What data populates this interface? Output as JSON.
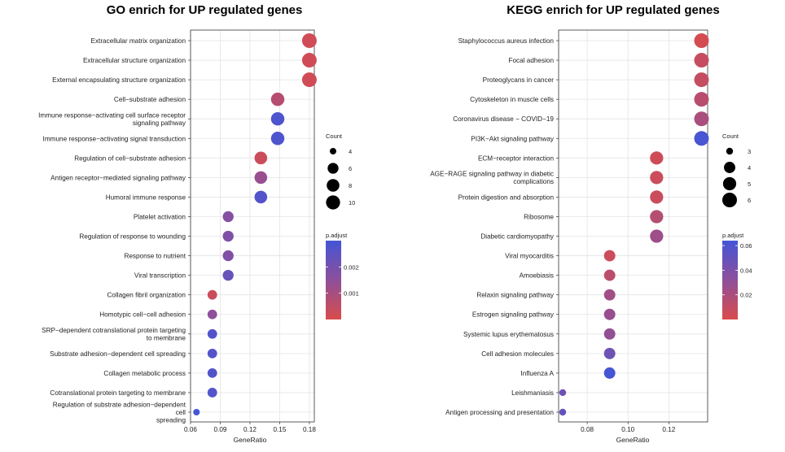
{
  "chart_data": [
    {
      "type": "scatter",
      "title": "GO enrich for UP regulated genes",
      "xlabel": "GeneRatio",
      "ylabel": "",
      "xlim": [
        0.06,
        0.185
      ],
      "xticks": [
        0.06,
        0.09,
        0.12,
        0.15,
        0.18
      ],
      "xtick_labels": [
        "0.06",
        "0.09",
        "0.12",
        "0.15",
        "0.18"
      ],
      "grid": true,
      "categories": [
        "Extracellular matrix organization",
        "Extracellular structure organization",
        "External encapsulating structure organization",
        "Cell−substrate adhesion",
        "Immune response−activating cell surface receptor\nsignaling pathway",
        "Immune response−activating signal transduction",
        "Regulation of cell−substrate adhesion",
        "Antigen receptor−mediated signaling pathway",
        "Humoral immune response",
        "Platelet activation",
        "Regulation of response to wounding",
        "Response to nutrient",
        "Viral transcription",
        "Collagen fibril organization",
        "Homotypic cell−cell adhesion",
        "SRP−dependent cotranslational protein targeting\nto membrane",
        "Substrate adhesion−dependent cell spreading",
        "Collagen metabolic process",
        "Cotranslational protein targeting to membrane",
        "Regulation of substrate adhesion−dependent\ncell\nspreading"
      ],
      "x": [
        0.18,
        0.18,
        0.18,
        0.148,
        0.148,
        0.148,
        0.131,
        0.131,
        0.131,
        0.098,
        0.098,
        0.098,
        0.098,
        0.082,
        0.082,
        0.082,
        0.082,
        0.082,
        0.082,
        0.066
      ],
      "count": [
        11,
        11,
        11,
        9,
        9,
        9,
        8,
        8,
        8,
        6,
        6,
        6,
        6,
        5,
        5,
        5,
        5,
        5,
        5,
        4
      ],
      "p_adjust": [
        0.0002,
        0.0002,
        0.0002,
        0.0007,
        0.0028,
        0.0028,
        0.0003,
        0.0013,
        0.0027,
        0.0017,
        0.0018,
        0.0018,
        0.0023,
        0.0003,
        0.0015,
        0.0027,
        0.0027,
        0.0027,
        0.0027,
        0.003
      ],
      "size_legend": {
        "title": "Count",
        "values": [
          4,
          6,
          8,
          10
        ],
        "labels": [
          "4",
          "6",
          "8",
          "10"
        ],
        "range": [
          4,
          11
        ]
      },
      "color_legend": {
        "title": "p.adjust",
        "min": 0.0,
        "max": 0.003,
        "ticks": [
          0.001,
          0.002
        ],
        "tick_labels": [
          "0.001",
          "0.002"
        ],
        "low_color": "#d94c4c",
        "high_color": "#4455d6"
      }
    },
    {
      "type": "scatter",
      "title": "KEGG enrich for UP regulated genes",
      "xlabel": "GeneRatio",
      "ylabel": "",
      "xlim": [
        0.066,
        0.139
      ],
      "xticks": [
        0.08,
        0.1,
        0.12
      ],
      "xtick_labels": [
        "0.08",
        "0.10",
        "0.12"
      ],
      "grid": true,
      "categories": [
        "Staphylococcus aureus infection",
        "Focal adhesion",
        "Proteoglycans in cancer",
        "Cytoskeleton in muscle cells",
        "Coronavirus disease − COVID−19",
        "PI3K−Akt signaling pathway",
        "ECM−receptor interaction",
        "AGE−RAGE signaling pathway in diabetic\ncomplications",
        "Protein digestion and absorption",
        "Ribosome",
        "Diabetic cardiomyopathy",
        "Viral myocarditis",
        "Amoebiasis",
        "Relaxin signaling pathway",
        "Estrogen signaling pathway",
        "Systemic lupus erythematosus",
        "Cell adhesion molecules",
        "Influenza A",
        "Leishmaniasis",
        "Antigen processing and presentation"
      ],
      "x": [
        0.136,
        0.136,
        0.136,
        0.136,
        0.136,
        0.136,
        0.114,
        0.114,
        0.114,
        0.114,
        0.114,
        0.091,
        0.091,
        0.091,
        0.091,
        0.091,
        0.091,
        0.091,
        0.068,
        0.068
      ],
      "count": [
        6,
        6,
        6,
        6,
        6,
        6,
        5,
        5,
        5,
        5,
        5,
        4,
        4,
        4,
        4,
        4,
        4,
        4,
        3,
        3
      ],
      "p_adjust": [
        0.002,
        0.008,
        0.009,
        0.014,
        0.02,
        0.062,
        0.005,
        0.006,
        0.007,
        0.016,
        0.025,
        0.006,
        0.013,
        0.024,
        0.028,
        0.03,
        0.046,
        0.063,
        0.047,
        0.05
      ],
      "size_legend": {
        "title": "Count",
        "values": [
          3,
          4,
          5,
          6
        ],
        "labels": [
          "3",
          "4",
          "5",
          "6"
        ],
        "range": [
          3,
          6
        ]
      },
      "color_legend": {
        "title": "p.adjust",
        "min": 0.0,
        "max": 0.064,
        "ticks": [
          0.02,
          0.04,
          0.06
        ],
        "tick_labels": [
          "0.02",
          "0.04",
          "0.06"
        ],
        "low_color": "#d94c4c",
        "high_color": "#4455d6"
      }
    }
  ]
}
